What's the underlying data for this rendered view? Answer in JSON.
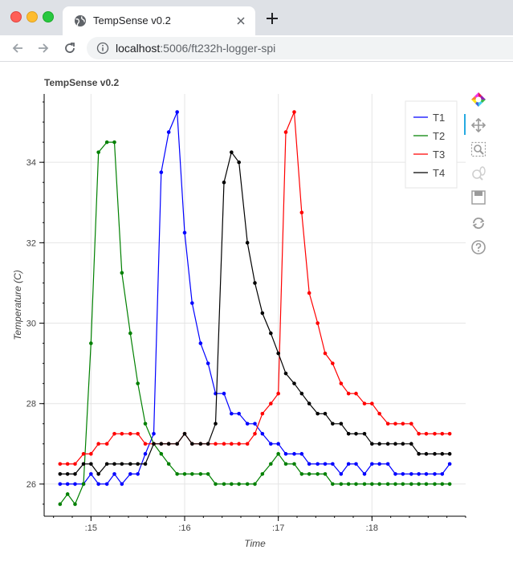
{
  "browser": {
    "tab_title": "TempSense v0.2",
    "url_host": "localhost",
    "url_rest": ":5006/ft232h-logger-spi"
  },
  "toolbar_icons": [
    "bokeh-logo-icon",
    "pan-icon",
    "box-zoom-icon",
    "wheel-zoom-icon",
    "save-icon",
    "reset-icon",
    "help-icon"
  ],
  "colors": {
    "T1": "#0000ff",
    "T2": "#008000",
    "T3": "#ff0000",
    "T4": "#000000",
    "grid": "#e5e5e5",
    "active_tool": "#26aae1"
  },
  "chart_data": {
    "type": "line",
    "title": "TempSense v0.2",
    "xlabel": "Time",
    "ylabel": "Temperature (C)",
    "x_ticks": [
      {
        "label": ":15",
        "value": 15
      },
      {
        "label": ":16",
        "value": 16
      },
      {
        "label": ":17",
        "value": 17
      },
      {
        "label": ":18",
        "value": 18
      }
    ],
    "y_ticks": [
      26,
      28,
      30,
      32,
      34
    ],
    "xlim": [
      14.5,
      19.0
    ],
    "ylim": [
      25.2,
      35.7
    ],
    "grid": true,
    "legend_position": "top-right",
    "x": [
      14.67,
      14.75,
      14.83,
      14.92,
      15.0,
      15.08,
      15.17,
      15.25,
      15.33,
      15.42,
      15.5,
      15.58,
      15.67,
      15.75,
      15.83,
      15.92,
      16.0,
      16.08,
      16.17,
      16.25,
      16.33,
      16.42,
      16.5,
      16.58,
      16.67,
      16.75,
      16.83,
      16.92,
      17.0,
      17.08,
      17.17,
      17.25,
      17.33,
      17.42,
      17.5,
      17.58,
      17.67,
      17.75,
      17.83,
      17.92,
      18.0,
      18.08,
      18.17,
      18.25,
      18.33,
      18.42,
      18.5,
      18.58,
      18.67,
      18.75,
      18.83
    ],
    "series": [
      {
        "name": "T1",
        "values": [
          26,
          26,
          26,
          26,
          26.25,
          26,
          26,
          26.25,
          26,
          26.25,
          26.25,
          26.75,
          27.25,
          33.75,
          34.75,
          35.25,
          32.25,
          30.5,
          29.5,
          29,
          28.25,
          28.25,
          27.75,
          27.75,
          27.5,
          27.5,
          27.25,
          27,
          27,
          26.75,
          26.75,
          26.75,
          26.5,
          26.5,
          26.5,
          26.5,
          26.25,
          26.5,
          26.5,
          26.25,
          26.5,
          26.5,
          26.5,
          26.25,
          26.25,
          26.25,
          26.25,
          26.25,
          26.25,
          26.25,
          26.5
        ]
      },
      {
        "name": "T2",
        "values": [
          25.5,
          25.75,
          25.5,
          26,
          29.5,
          34.25,
          34.5,
          34.5,
          31.25,
          29.75,
          28.5,
          27.5,
          27,
          26.75,
          26.5,
          26.25,
          26.25,
          26.25,
          26.25,
          26.25,
          26,
          26,
          26,
          26,
          26,
          26,
          26.25,
          26.5,
          26.75,
          26.5,
          26.5,
          26.25,
          26.25,
          26.25,
          26.25,
          26,
          26,
          26,
          26,
          26,
          26,
          26,
          26,
          26,
          26,
          26,
          26,
          26,
          26,
          26,
          26
        ]
      },
      {
        "name": "T3",
        "values": [
          26.5,
          26.5,
          26.5,
          26.75,
          26.75,
          27,
          27,
          27.25,
          27.25,
          27.25,
          27.25,
          27,
          27,
          27,
          27,
          27,
          27.25,
          27,
          27,
          27,
          27,
          27,
          27,
          27,
          27,
          27.25,
          27.75,
          28,
          28.25,
          34.75,
          35.25,
          32.75,
          30.75,
          30,
          29.25,
          29,
          28.5,
          28.25,
          28.25,
          28,
          28,
          27.75,
          27.5,
          27.5,
          27.5,
          27.5,
          27.25,
          27.25,
          27.25,
          27.25,
          27.25
        ]
      },
      {
        "name": "T4",
        "values": [
          26.25,
          26.25,
          26.25,
          26.5,
          26.5,
          26.25,
          26.5,
          26.5,
          26.5,
          26.5,
          26.5,
          26.5,
          27,
          27,
          27,
          27,
          27.25,
          27,
          27,
          27,
          27.5,
          33.5,
          34.25,
          34,
          32,
          31,
          30.25,
          29.75,
          29.25,
          28.75,
          28.5,
          28.25,
          28,
          27.75,
          27.75,
          27.5,
          27.5,
          27.25,
          27.25,
          27.25,
          27,
          27,
          27,
          27,
          27,
          27,
          26.75,
          26.75,
          26.75,
          26.75,
          26.75
        ]
      }
    ]
  }
}
